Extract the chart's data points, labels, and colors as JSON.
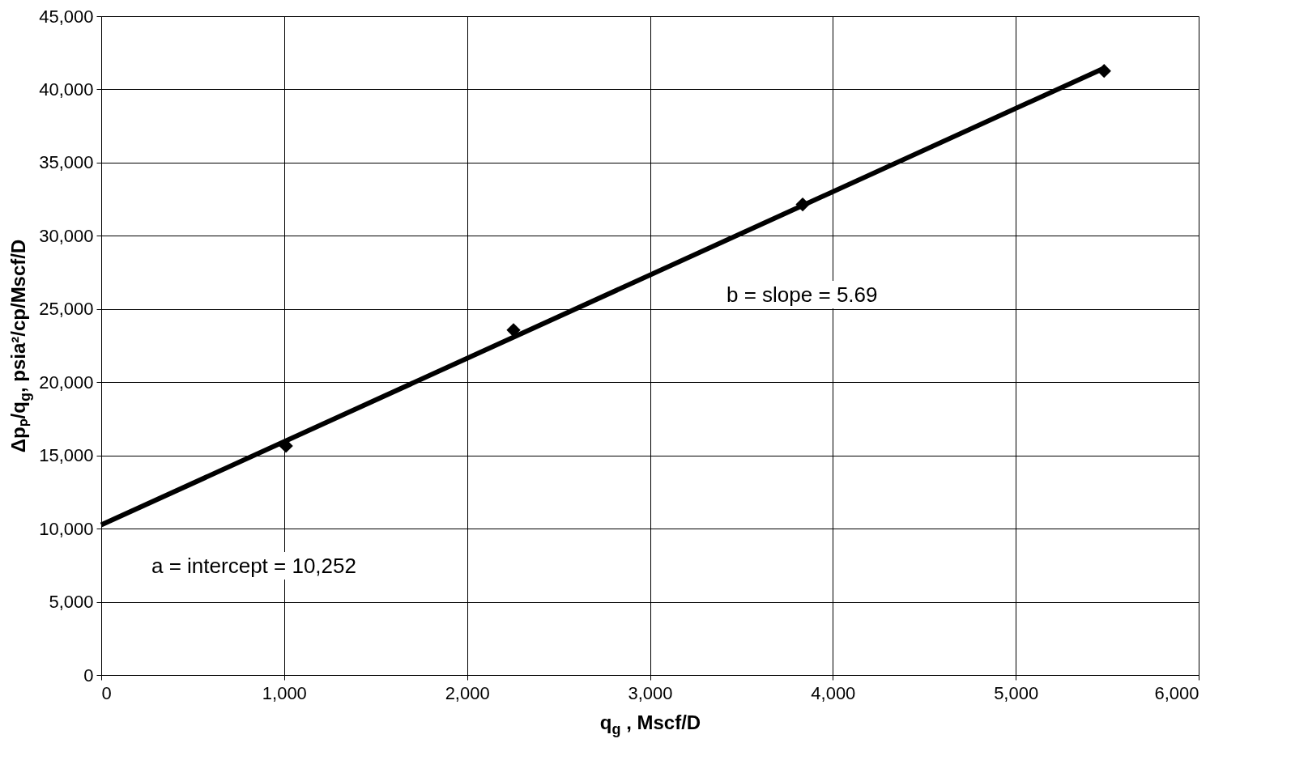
{
  "chart_data": {
    "type": "scatter",
    "xlabel": "q$_{g}$ , Mscf/D",
    "ylabel": "Δpₚ/q$_{g}$, psia²/cp/Mscf/D",
    "xlim": [
      0,
      6000
    ],
    "ylim": [
      0,
      45000
    ],
    "xticks": [
      0,
      {
        "value": 1000,
        "label": "1,000"
      },
      {
        "value": 2000,
        "label": "2,000"
      },
      {
        "value": 3000,
        "label": "3,000"
      },
      {
        "value": 4000,
        "label": "4,000"
      },
      {
        "value": 5000,
        "label": "5,000"
      },
      {
        "value": 6000,
        "label": "6,000"
      }
    ],
    "yticks": [
      0,
      {
        "value": 5000,
        "label": "5,000"
      },
      {
        "value": 10000,
        "label": "10,000"
      },
      {
        "value": 15000,
        "label": "15,000"
      },
      {
        "value": 20000,
        "label": "20,000"
      },
      {
        "value": 25000,
        "label": "25,000"
      },
      {
        "value": 30000,
        "label": "30,000"
      },
      {
        "value": 35000,
        "label": "35,000"
      },
      {
        "value": 40000,
        "label": "40,000"
      },
      {
        "value": 45000,
        "label": "45,000"
      }
    ],
    "grid": true,
    "legend": false,
    "marker": "diamond",
    "series": [
      {
        "color": "#000000",
        "x": [
          1010,
          2254,
          3835,
          5483
        ],
        "values": [
          15650,
          23560,
          32140,
          41260
        ]
      },
      {
        "type": "line",
        "color": "#000000",
        "line_style": "solid",
        "marker": "none",
        "x": [
          0,
          5483
        ],
        "values": [
          10250,
          41450
        ]
      }
    ],
    "annotations": [
      "a = intercept = 10,252",
      "b = slope = 5.69"
    ]
  }
}
